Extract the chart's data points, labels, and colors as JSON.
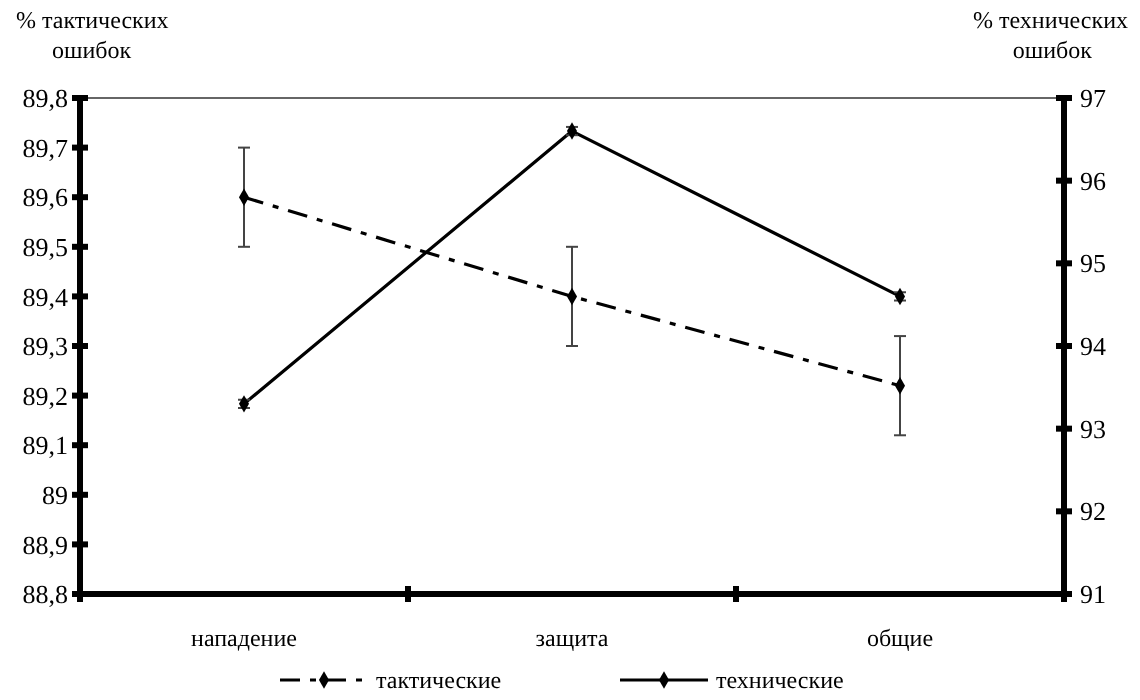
{
  "chart_data": {
    "type": "line",
    "ylabel": "% тактических ошибок",
    "y2label": "% технических ошибок",
    "categories": [
      "нападение",
      "защита",
      "общие"
    ],
    "series": [
      {
        "name": "тактические",
        "color": "#000000",
        "values": [
          89.6,
          89.4,
          89.22
        ],
        "errors": [
          0.1,
          0.1,
          0.1
        ],
        "line_style": "dashed",
        "marker": "diamond"
      },
      {
        "name": "технические",
        "color": "#000000",
        "values": [
          93.3,
          96.6,
          94.6
        ],
        "errors": [
          0.05,
          0.05,
          0.05
        ],
        "line_style": "solid",
        "marker": "diamond",
        "axis": "y2"
      }
    ],
    "ylim": [
      88.8,
      89.8
    ],
    "yticks": [
      {
        "value": 88.8,
        "label": "88,8"
      },
      {
        "value": 88.9,
        "label": "88,9"
      },
      {
        "value": 89,
        "label": "89"
      },
      {
        "value": 89.1,
        "label": "89,1"
      },
      {
        "value": 89.2,
        "label": "89,2"
      },
      {
        "value": 89.3,
        "label": "89,3"
      },
      {
        "value": 89.4,
        "label": "89,4"
      },
      {
        "value": 89.5,
        "label": "89,5"
      },
      {
        "value": 89.6,
        "label": "89,6"
      },
      {
        "value": 89.7,
        "label": "89,7"
      },
      {
        "value": 89.8,
        "label": "89,8"
      }
    ],
    "y2lim": [
      91,
      97
    ],
    "y2ticks": [
      91,
      92,
      93,
      94,
      95,
      96,
      97
    ],
    "legend": "bottom",
    "grid": false
  }
}
